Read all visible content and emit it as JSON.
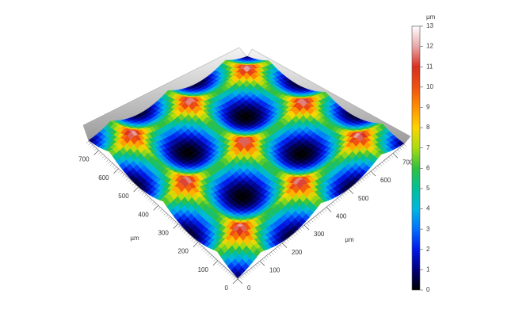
{
  "chart_data": {
    "type": "surface",
    "x_label": "µm",
    "y_label": "µm",
    "xlim": [
      0,
      750
    ],
    "xticks": [
      0,
      100,
      200,
      300,
      400,
      500,
      600,
      700
    ],
    "ylim": [
      0,
      750
    ],
    "yticks": [
      0,
      100,
      200,
      300,
      400,
      500,
      600,
      700
    ],
    "colorbar_label": "µm",
    "zlim": [
      0,
      13
    ],
    "zticks": [
      0,
      1,
      2,
      3,
      4,
      5,
      6,
      7,
      8,
      9,
      10,
      11,
      12,
      13
    ],
    "colorscale": [
      [
        0,
        "#000000"
      ],
      [
        1,
        "#00007a"
      ],
      [
        2,
        "#0018e8"
      ],
      [
        3,
        "#0070ff"
      ],
      [
        4,
        "#00b8e0"
      ],
      [
        5,
        "#00c098"
      ],
      [
        6,
        "#30c040"
      ],
      [
        7,
        "#a8dc10"
      ],
      [
        8,
        "#ffd400"
      ],
      [
        9,
        "#ff9000"
      ],
      [
        10,
        "#f05010"
      ],
      [
        11,
        "#d83020"
      ],
      [
        12,
        "#e8a8a8"
      ],
      [
        13,
        "#ffffff"
      ]
    ]
  }
}
